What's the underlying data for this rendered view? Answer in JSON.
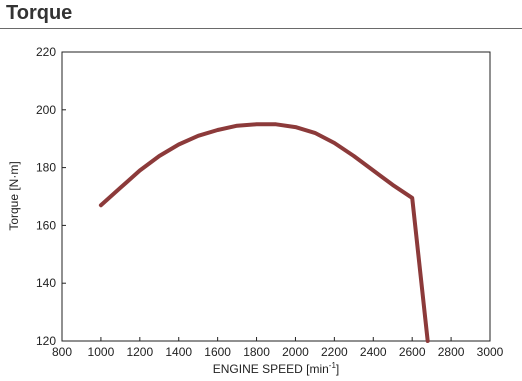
{
  "header": {
    "title": "Torque"
  },
  "chart_data": {
    "type": "line",
    "title": "Torque",
    "xlabel": "ENGINE SPEED [min",
    "xlabel_sup": "-1",
    "xlabel_end": "]",
    "ylabel": "Torque [N·m]",
    "xlim": [
      800,
      3000
    ],
    "ylim": [
      120,
      220
    ],
    "x_ticks": [
      "800",
      "1000",
      "1200",
      "1400",
      "1600",
      "1800",
      "2000",
      "2200",
      "2400",
      "2600",
      "2800",
      "3000"
    ],
    "y_ticks": [
      "120",
      "140",
      "160",
      "180",
      "200",
      "220"
    ],
    "grid": false,
    "series": [
      {
        "color": "#8c3a3a",
        "x": [
          1000,
          1100,
          1200,
          1300,
          1400,
          1500,
          1600,
          1700,
          1800,
          1900,
          2000,
          2100,
          2200,
          2300,
          2400,
          2500,
          2600,
          2680
        ],
        "y": [
          167,
          173,
          179,
          184,
          188,
          191,
          193,
          194.5,
          195,
          195,
          194,
          192,
          188.5,
          184,
          179,
          174,
          169.5,
          120
        ]
      }
    ]
  }
}
